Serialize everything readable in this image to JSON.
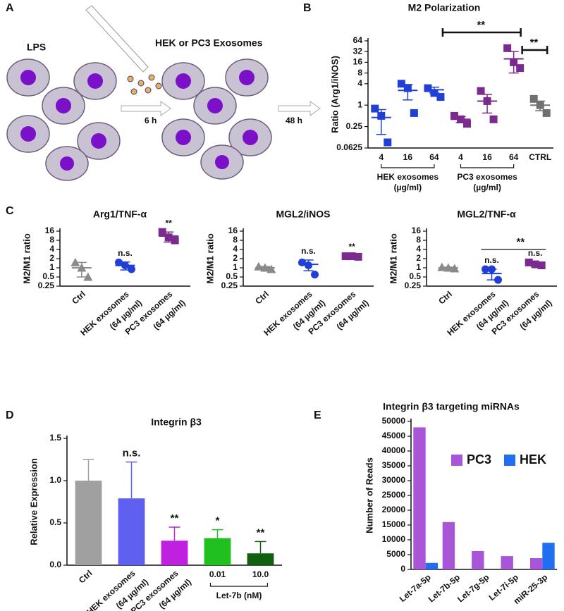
{
  "diagram": {
    "panel": "A",
    "texts": [
      "LPS",
      "HEK or PC3 Exosomes",
      "6 h",
      "48 h"
    ]
  },
  "chart_data": [
    {
      "type": "dotplot",
      "panel": "B",
      "title": "M2 Polarization",
      "ylabel": "Ratio (Arg1/iNOS)",
      "yscale": "log2",
      "ylim": [
        0.0625,
        64
      ],
      "yticks": [
        0.0625,
        0.25,
        1,
        4,
        8,
        16,
        32,
        64
      ],
      "rotate_labels": false,
      "categories": [
        [
          "4"
        ],
        [
          "16"
        ],
        [
          "64"
        ],
        [
          "4"
        ],
        [
          "16"
        ],
        [
          "64"
        ],
        [
          "CTRL"
        ]
      ],
      "colors": [
        "#1f3fd6",
        "#1f3fd6",
        "#1f3fd6",
        "#7b2a8f",
        "#7b2a8f",
        "#7b2a8f",
        "#707070"
      ],
      "markers": [
        "square",
        "square",
        "square",
        "square",
        "square",
        "square",
        "square"
      ],
      "points": [
        [
          0.8,
          0.5,
          0.09
        ],
        [
          4,
          3,
          0.6
        ],
        [
          3,
          2.2,
          1.7
        ],
        [
          0.5,
          0.4,
          0.3
        ],
        [
          2.5,
          1.3,
          0.4
        ],
        [
          40,
          16,
          11
        ],
        [
          1.5,
          1,
          0.6
        ]
      ],
      "means": [
        0.45,
        2.6,
        2.7,
        0.4,
        1.3,
        20,
        1.0
      ],
      "errors": [
        0.3,
        1.2,
        0.5,
        0.08,
        0.7,
        12,
        0.3
      ],
      "brackets": [
        {
          "text": "**",
          "span": [
            2,
            5
          ]
        },
        {
          "text": "**",
          "span": [
            5,
            6
          ]
        }
      ],
      "groups": [
        {
          "label": [
            "HEK exosomes",
            "(µg/ml)"
          ],
          "span": [
            0,
            2
          ]
        },
        {
          "label": [
            "PC3 exosomes",
            "(µg/ml)"
          ],
          "span": [
            3,
            5
          ]
        }
      ]
    },
    {
      "type": "dotplot",
      "panel": "C",
      "title": "Arg1/TNF-α",
      "ylabel": "M2/M1 ratio",
      "yscale": "log2",
      "ylim": [
        0.25,
        16
      ],
      "yticks": [
        0.25,
        0.5,
        1,
        2,
        4,
        8,
        16
      ],
      "rotate_labels": true,
      "categories": [
        [
          "Ctrl"
        ],
        [
          "HEK exosomes",
          "(64 µg/ml)"
        ],
        [
          "PC3 exosomes",
          "(64 µg/ml)"
        ]
      ],
      "colors": [
        "#8a8a8a",
        "#1f3fd6",
        "#7b2a8f"
      ],
      "markers": [
        "triangle",
        "circle",
        "square"
      ],
      "points": [
        [
          1.5,
          1,
          0.5
        ],
        [
          1.5,
          1.2,
          0.9
        ],
        [
          15,
          10,
          8
        ]
      ],
      "means": [
        1,
        1.2,
        11
      ],
      "errors": [
        0.5,
        0.35,
        4
      ],
      "significance": [
        null,
        "n.s.",
        "**"
      ]
    },
    {
      "type": "dotplot",
      "title": "MGL2/iNOS",
      "ylabel": "M2/M1 ratio",
      "yscale": "log2",
      "ylim": [
        0.25,
        16
      ],
      "yticks": [
        0.25,
        0.5,
        1,
        2,
        4,
        8,
        16
      ],
      "rotate_labels": true,
      "categories": [
        [
          "Ctrl"
        ],
        [
          "HEK exosomes",
          "(64 µg/ml)"
        ],
        [
          "PC3 exosomes",
          "(64 µg/ml)"
        ]
      ],
      "colors": [
        "#8a8a8a",
        "#1f3fd6",
        "#7b2a8f"
      ],
      "markers": [
        "triangle",
        "circle",
        "square"
      ],
      "points": [
        [
          1.1,
          1,
          0.9
        ],
        [
          1.5,
          1.2,
          0.6
        ],
        [
          2.4,
          2.4,
          2.3
        ]
      ],
      "means": [
        1,
        1.3,
        2.4
      ],
      "errors": [
        0.1,
        0.5,
        0.1
      ],
      "significance": [
        null,
        "n.s.",
        "**"
      ]
    },
    {
      "type": "dotplot",
      "title": "MGL2/TNF-α",
      "ylabel": "M2/M1 ratio",
      "yscale": "log2",
      "ylim": [
        0.25,
        16
      ],
      "yticks": [
        0.25,
        0.5,
        1,
        2,
        4,
        8,
        16
      ],
      "rotate_labels": true,
      "categories": [
        [
          "Ctrl"
        ],
        [
          "HEK exosomes",
          "(64 µg/ml)"
        ],
        [
          "PC3 exosomes",
          "(64 µg/ml)"
        ]
      ],
      "colors": [
        "#8a8a8a",
        "#1f3fd6",
        "#7b2a8f"
      ],
      "markers": [
        "triangle",
        "circle",
        "square"
      ],
      "points": [
        [
          1.05,
          1,
          0.95
        ],
        [
          0.9,
          0.9,
          0.4
        ],
        [
          1.5,
          1.3,
          1.2
        ]
      ],
      "means": [
        1,
        0.65,
        1.35
      ],
      "errors": [
        0.05,
        0.25,
        0.2
      ],
      "significance": [
        null,
        "n.s.",
        "n.s."
      ],
      "brackets": [
        {
          "text": "**",
          "span": [
            1,
            2
          ]
        }
      ]
    },
    {
      "type": "bar",
      "panel": "D",
      "title": "Integrin β3",
      "ylabel": "Relative Expression",
      "ylim": [
        0,
        1.5
      ],
      "yticks": [
        {
          "value": 0,
          "label": "0.0"
        },
        0.5,
        {
          "value": 1,
          "label": "1.0"
        },
        1.5
      ],
      "categories": [
        [
          "Ctrl"
        ],
        [
          "HEK exosomes",
          "(64 µg/ml)"
        ],
        [
          "PC3 exosomes",
          "(64 µg/ml)"
        ],
        [
          "0.01"
        ],
        [
          "10.0"
        ]
      ],
      "values": [
        1.0,
        0.79,
        0.29,
        0.32,
        0.14
      ],
      "errors": [
        0.25,
        0.43,
        0.16,
        0.1,
        0.14
      ],
      "colors": [
        "#a0a0a0",
        "#6060f0",
        "#c020e0",
        "#20c020",
        "#106010"
      ],
      "significance": [
        null,
        "n.s.",
        "**",
        "*",
        "**"
      ],
      "bracket": {
        "label": "Let-7b (nM)",
        "span": [
          3,
          4
        ]
      }
    },
    {
      "type": "grouped_bar",
      "panel": "E",
      "title": "Integrin β3 targeting miRNAs",
      "ylabel": "Number of Reads",
      "ylim": [
        0,
        50000
      ],
      "yticks": [
        0,
        5000,
        10000,
        15000,
        20000,
        25000,
        30000,
        35000,
        40000,
        45000,
        50000
      ],
      "categories": [
        "Let-7a-5p",
        "Let-7b-5p",
        "Let-7g-5p",
        "Let-7i-5p",
        "miR-25-3p"
      ],
      "legend": "upper right",
      "series": [
        {
          "name": "PC3",
          "color": "#a855d8",
          "values": [
            48000,
            16000,
            6200,
            4500,
            3800
          ]
        },
        {
          "name": "HEK",
          "color": "#1f6ff0",
          "values": [
            2200,
            0,
            0,
            0,
            9000
          ]
        }
      ]
    }
  ]
}
